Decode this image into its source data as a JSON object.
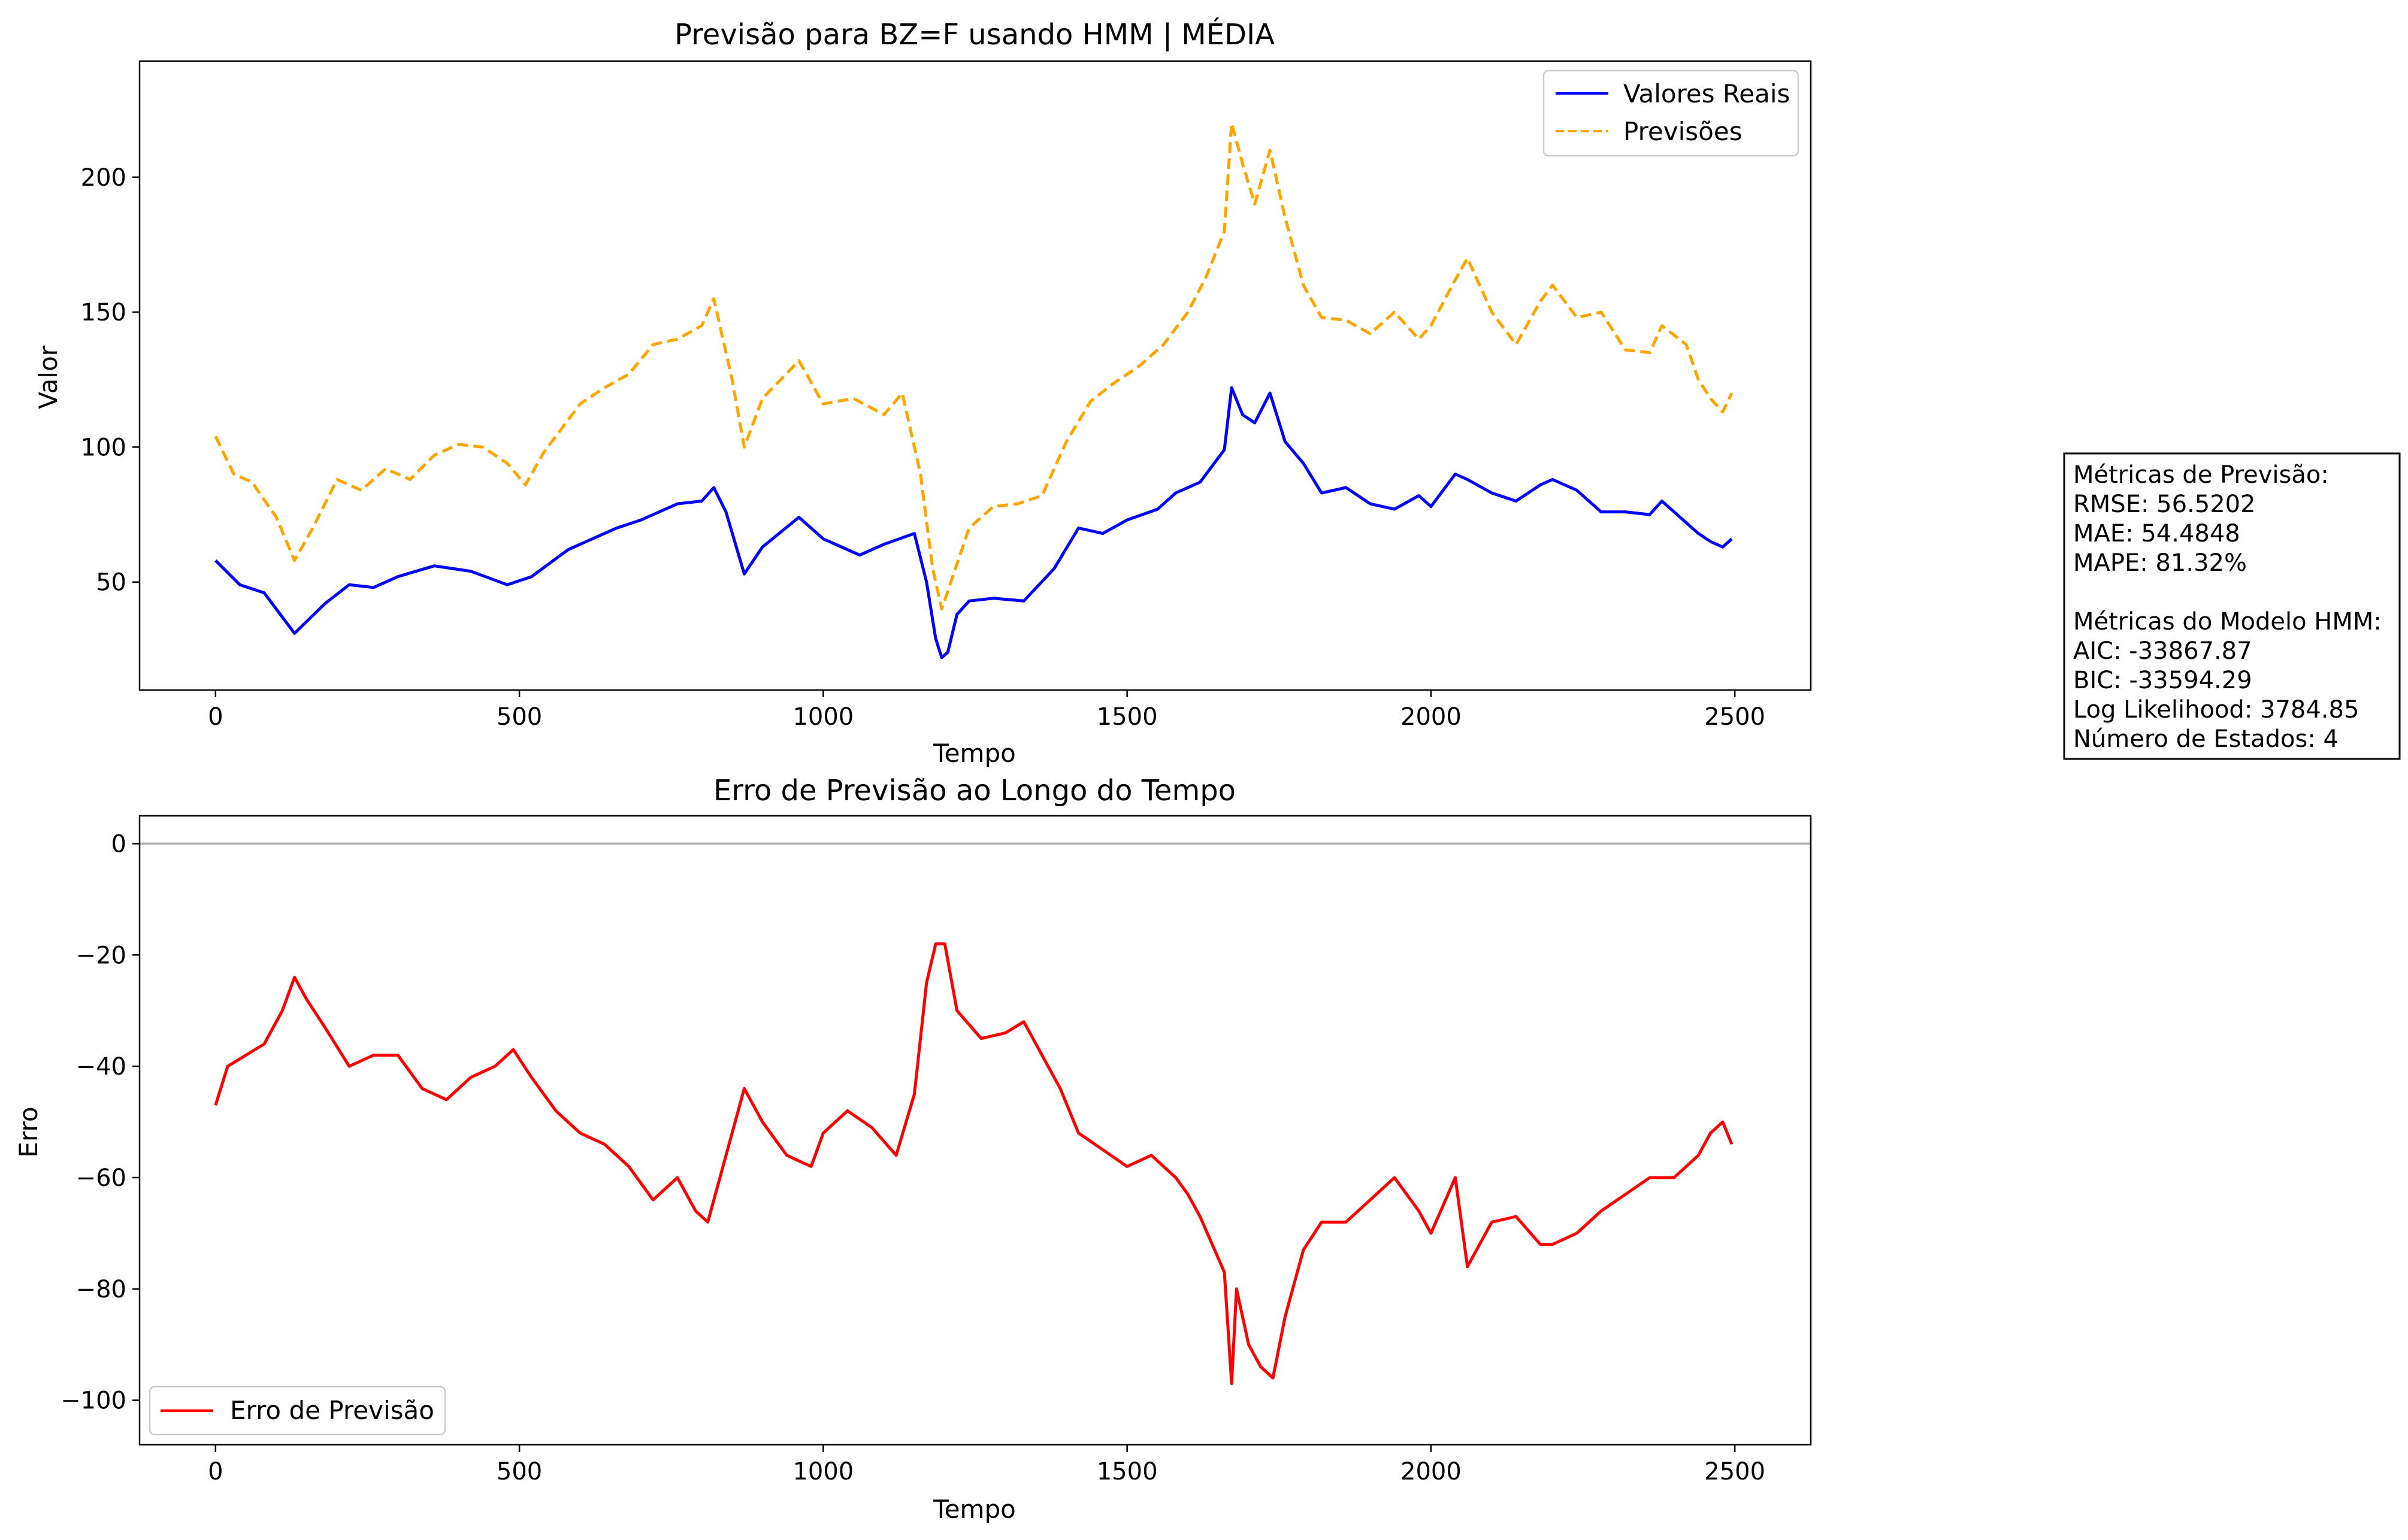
{
  "chart_data": [
    {
      "type": "line",
      "title": "Previsão para BZ=F usando HMM | MÉDIA",
      "xlabel": "Tempo",
      "ylabel": "Valor",
      "xlim": [
        -125,
        2625
      ],
      "ylim": [
        10,
        243
      ],
      "xticks": [
        0,
        500,
        1000,
        1500,
        2000,
        2500
      ],
      "xtick_labels": [
        "0",
        "500",
        "1000",
        "1500",
        "2000",
        "2500"
      ],
      "yticks": [
        50,
        100,
        150,
        200
      ],
      "ytick_labels": [
        "50",
        "100",
        "150",
        "200"
      ],
      "legend": "top-right",
      "series": [
        {
          "name": "Valores Reais",
          "color": "#0000ff",
          "style": "solid",
          "x": [
            0,
            40,
            80,
            130,
            180,
            220,
            260,
            300,
            360,
            420,
            480,
            520,
            580,
            620,
            660,
            700,
            760,
            800,
            820,
            840,
            870,
            900,
            960,
            1000,
            1060,
            1100,
            1150,
            1170,
            1185,
            1195,
            1205,
            1220,
            1240,
            1280,
            1330,
            1380,
            1420,
            1460,
            1500,
            1550,
            1580,
            1620,
            1660,
            1672,
            1690,
            1710,
            1735,
            1760,
            1790,
            1820,
            1860,
            1900,
            1940,
            1980,
            2000,
            2040,
            2060,
            2100,
            2140,
            2180,
            2200,
            2240,
            2280,
            2320,
            2360,
            2380,
            2420,
            2440,
            2460,
            2480,
            2495
          ],
          "values": [
            58,
            49,
            46,
            31,
            42,
            49,
            48,
            52,
            56,
            54,
            49,
            52,
            62,
            66,
            70,
            73,
            79,
            80,
            85,
            76,
            53,
            63,
            74,
            66,
            60,
            64,
            68,
            50,
            29,
            22,
            24,
            38,
            43,
            44,
            43,
            55,
            70,
            68,
            73,
            77,
            83,
            87,
            99,
            122,
            112,
            109,
            120,
            102,
            94,
            83,
            85,
            79,
            77,
            82,
            78,
            90,
            88,
            83,
            80,
            86,
            88,
            84,
            76,
            76,
            75,
            80,
            72,
            68,
            65,
            63,
            66
          ]
        },
        {
          "name": "Previsões",
          "color": "#ffa500",
          "style": "dashed",
          "x": [
            0,
            30,
            60,
            100,
            130,
            160,
            200,
            240,
            280,
            320,
            360,
            400,
            440,
            480,
            510,
            540,
            600,
            640,
            680,
            720,
            760,
            800,
            820,
            850,
            870,
            900,
            960,
            1000,
            1050,
            1100,
            1130,
            1160,
            1180,
            1195,
            1210,
            1240,
            1280,
            1320,
            1360,
            1400,
            1440,
            1480,
            1520,
            1560,
            1600,
            1630,
            1660,
            1672,
            1690,
            1710,
            1735,
            1760,
            1790,
            1820,
            1860,
            1900,
            1940,
            1980,
            2000,
            2040,
            2060,
            2100,
            2140,
            2180,
            2200,
            2240,
            2280,
            2320,
            2360,
            2380,
            2420,
            2440,
            2460,
            2480,
            2495
          ],
          "values": [
            104,
            90,
            87,
            74,
            58,
            70,
            88,
            84,
            92,
            88,
            97,
            101,
            100,
            94,
            86,
            98,
            116,
            122,
            127,
            138,
            140,
            145,
            155,
            125,
            100,
            118,
            132,
            116,
            118,
            112,
            120,
            90,
            55,
            40,
            50,
            70,
            78,
            79,
            82,
            102,
            117,
            124,
            130,
            138,
            150,
            163,
            180,
            220,
            205,
            190,
            210,
            185,
            160,
            148,
            147,
            142,
            150,
            140,
            145,
            162,
            170,
            150,
            138,
            154,
            160,
            148,
            150,
            136,
            135,
            145,
            138,
            125,
            118,
            113,
            120
          ]
        }
      ]
    },
    {
      "type": "line",
      "title": "Erro de Previsão ao Longo do Tempo",
      "xlabel": "Tempo",
      "ylabel": "Erro",
      "xlim": [
        -125,
        2625
      ],
      "ylim": [
        -108,
        5
      ],
      "xticks": [
        0,
        500,
        1000,
        1500,
        2000,
        2500
      ],
      "xtick_labels": [
        "0",
        "500",
        "1000",
        "1500",
        "2000",
        "2500"
      ],
      "yticks": [
        0,
        -20,
        -40,
        -60,
        -80,
        -100
      ],
      "ytick_labels": [
        "0",
        "−20",
        "−40",
        "−60",
        "−80",
        "−100"
      ],
      "legend": "bottom-left",
      "reference_line": {
        "y": 0,
        "color": "#b3b3b3"
      },
      "series": [
        {
          "name": "Erro de Previsão",
          "color": "#ff0000",
          "style": "solid",
          "x": [
            0,
            20,
            50,
            80,
            110,
            130,
            150,
            180,
            220,
            260,
            300,
            340,
            380,
            420,
            460,
            490,
            520,
            560,
            600,
            640,
            680,
            720,
            760,
            790,
            810,
            830,
            850,
            870,
            900,
            940,
            980,
            1000,
            1040,
            1080,
            1120,
            1150,
            1170,
            1185,
            1200,
            1220,
            1260,
            1300,
            1330,
            1360,
            1390,
            1420,
            1460,
            1500,
            1540,
            1580,
            1600,
            1620,
            1660,
            1672,
            1680,
            1700,
            1720,
            1740,
            1760,
            1790,
            1820,
            1860,
            1900,
            1940,
            1980,
            2000,
            2040,
            2060,
            2100,
            2140,
            2180,
            2200,
            2240,
            2280,
            2320,
            2360,
            2400,
            2440,
            2460,
            2480,
            2495
          ],
          "values": [
            -47,
            -40,
            -38,
            -36,
            -30,
            -24,
            -28,
            -33,
            -40,
            -38,
            -38,
            -44,
            -46,
            -42,
            -40,
            -37,
            -42,
            -48,
            -52,
            -54,
            -58,
            -64,
            -60,
            -66,
            -68,
            -60,
            -52,
            -44,
            -50,
            -56,
            -58,
            -52,
            -48,
            -51,
            -56,
            -45,
            -25,
            -18,
            -18,
            -30,
            -35,
            -34,
            -32,
            -38,
            -44,
            -52,
            -55,
            -58,
            -56,
            -60,
            -63,
            -67,
            -77,
            -97,
            -80,
            -90,
            -94,
            -96,
            -85,
            -73,
            -68,
            -68,
            -64,
            -60,
            -66,
            -70,
            -60,
            -76,
            -68,
            -67,
            -72,
            -72,
            -70,
            -66,
            -63,
            -60,
            -60,
            -56,
            -52,
            -50,
            -54
          ]
        }
      ]
    }
  ],
  "metrics_box": {
    "lines": [
      "Métricas de Previsão:",
      "RMSE: 56.5202",
      "MAE: 54.4848",
      "MAPE: 81.32%",
      "",
      "Métricas do Modelo HMM:",
      "AIC: -33867.87",
      "BIC: -33594.29",
      "Log Likelihood: 3784.85",
      "Número de Estados: 4"
    ]
  }
}
